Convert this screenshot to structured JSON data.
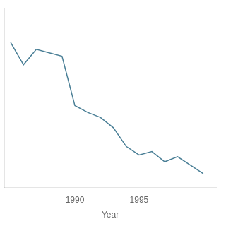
{
  "chart_data": {
    "type": "line",
    "x": [
      1985,
      1986,
      1987,
      1988,
      1989,
      1990,
      1991,
      1992,
      1993,
      1994,
      1995,
      1996,
      1997,
      1998,
      1999,
      2000
    ],
    "values": [
      9.5,
      8.2,
      9.1,
      8.9,
      8.7,
      5.8,
      5.4,
      5.1,
      4.5,
      3.4,
      2.9,
      3.1,
      2.5,
      2.8,
      2.3,
      1.8
    ],
    "color": "#4a7f96",
    "xlabel": "Year",
    "xlim": [
      1984.5,
      2001.0
    ],
    "xticks": [
      1990,
      1995
    ],
    "ylim": [
      1.0,
      11.5
    ],
    "yticks": [
      4.0,
      7.0
    ],
    "grid": true,
    "tick_labels": "x"
  }
}
